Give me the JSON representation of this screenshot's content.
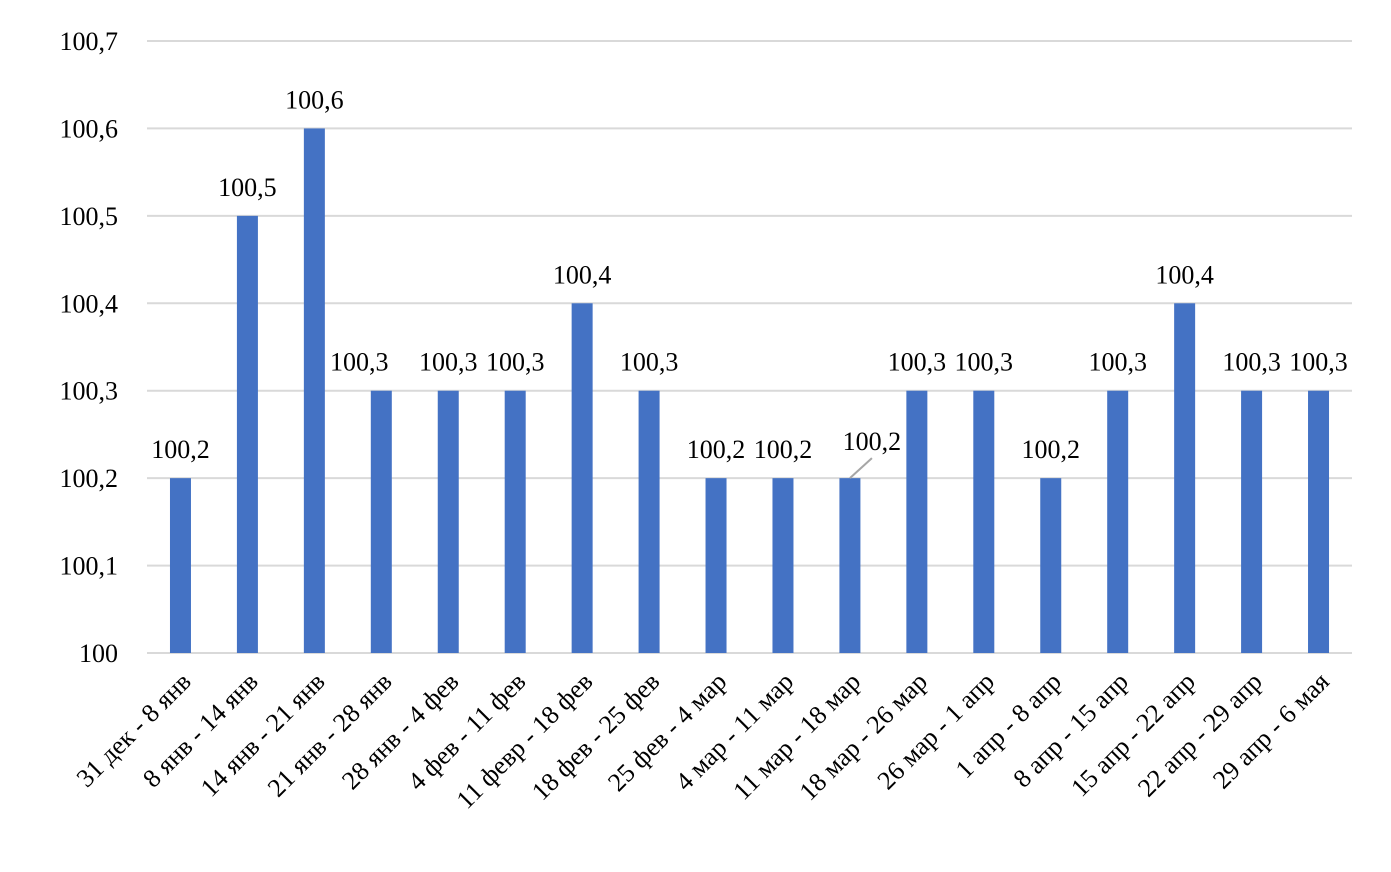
{
  "chart_data": {
    "type": "bar",
    "title": "",
    "xlabel": "",
    "ylabel": "",
    "ylim": [
      100,
      100.7
    ],
    "yticks": [
      "100",
      "100,1",
      "100,2",
      "100,3",
      "100,4",
      "100,5",
      "100,6",
      "100,7"
    ],
    "grid": true,
    "legend": "none",
    "bar_color": "#4472C4",
    "categories": [
      "31 дек - 8 янв",
      "8 янв - 14 янв",
      "14 янв - 21 янв",
      "21 янв - 28 янв",
      "28 янв - 4 фев",
      "4 фев - 11 фев",
      "11 февр - 18 фев",
      "18 фев - 25 фев",
      "25 фев - 4 мар",
      "4 мар - 11 мар",
      "11 мар - 18 мар",
      "18 мар - 26 мар",
      "26 мар - 1 апр",
      "1 апр - 8 апр",
      "8 апр - 15 апр",
      "15 апр - 22 апр",
      "22 апр - 29 апр",
      "29 апр - 6 мая"
    ],
    "values": [
      100.2,
      100.5,
      100.6,
      100.3,
      100.3,
      100.3,
      100.4,
      100.3,
      100.2,
      100.2,
      100.2,
      100.3,
      100.3,
      100.2,
      100.3,
      100.4,
      100.3,
      100.3
    ],
    "data_labels": [
      "100,2",
      "100,5",
      "100,6",
      "100,3",
      "100,3",
      "100,3",
      "100,4",
      "100,3",
      "100,2",
      "100,2",
      "100,2",
      "100,3",
      "100,3",
      "100,2",
      "100,3",
      "100,4",
      "100,3",
      "100,3"
    ]
  }
}
